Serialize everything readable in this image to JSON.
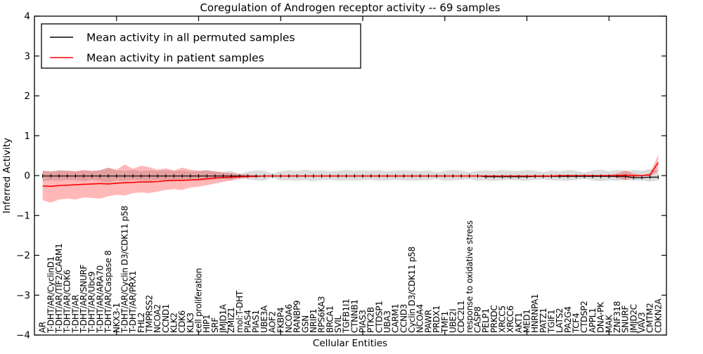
{
  "figure": {
    "title": "Coregulation of Androgen receptor activity -- 69 samples",
    "xlabel": "Cellular Entities",
    "ylabel": "Inferred Activity",
    "legend": {
      "entries": [
        {
          "label": "Mean activity in all permuted samples",
          "color": "#000000"
        },
        {
          "label": "Mean activity in patient samples",
          "color": "#ff0000"
        }
      ],
      "position": "upper left"
    },
    "colors": {
      "permuted_line": "#000000",
      "permuted_band": "#bfbfbf",
      "patient_line": "#ff0000",
      "patient_band": "#ff0000",
      "spine": "#000000"
    }
  },
  "chart_data": {
    "type": "line",
    "title": "Coregulation of Androgen receptor activity -- 69 samples",
    "xlabel": "Cellular Entities",
    "ylabel": "Inferred Activity",
    "xlim": [
      0,
      77
    ],
    "ylim": [
      -4,
      4
    ],
    "yticks": [
      4,
      3,
      2,
      1,
      0,
      -1,
      -2,
      -3,
      -4
    ],
    "yticklabels": [
      "4",
      "3",
      "2",
      "1",
      "0",
      "−1",
      "−2",
      "−3",
      "−4"
    ],
    "xticks": [
      10,
      20,
      30,
      40,
      50,
      60,
      70
    ],
    "grid": false,
    "legend_position": "upper left",
    "categories": [
      "AR",
      "T-DHT/AR/CyclinD1",
      "T-DHT/AR/TIF2/CARM1",
      "T-DHT/AR/CDK6",
      "T-DHT/AR",
      "T-DHT/AR/SNURF",
      "T-DHT/AR/Ubc9",
      "T-DHT/AR/ARA70",
      "T-DHT/AR/Caspase 8",
      "NKX3-1",
      "T-DHT/AR/Cyclin D3/CDK11 p58",
      "T-DHT/AR/PRX1",
      "FHL2",
      "TMPRSS2",
      "NCOA2",
      "CCND1",
      "KLK2",
      "CDK6",
      "KLK3",
      "cell proliferation",
      "HIP1",
      "SRF",
      "JMJD1A",
      "ZMIZ1",
      "mol:T-DHT",
      "PIAS4",
      "PIAS1",
      "UBE3A",
      "AOF2",
      "FKBP4",
      "NCOA6",
      "RANBP9",
      "GSN",
      "NRIP1",
      "RPS6KA3",
      "BRCA1",
      "SVIL",
      "TGFB1I1",
      "CTNNB1",
      "PIAS3",
      "PTK2B",
      "CTDSP1",
      "UBA3",
      "CARM1",
      "CCND3",
      "Cyclin D3/CDK11 p58",
      "NCOA4",
      "PAWR",
      "PRDX1",
      "TMF1",
      "UBE2I",
      "CDC2L1",
      "response to oxidative stress",
      "CASP8",
      "PELP1",
      "PRKDC",
      "XRCC5",
      "XRCC6",
      "AKT1",
      "MED1",
      "HNRNPA1",
      "PATZ1",
      "TGIF1",
      "LATS2",
      "PA2G4",
      "TCF4",
      "CTDSP2",
      "APPL1",
      "DNA-PK",
      "MAK",
      "ZNF318",
      "SNURF",
      "JMJD2C",
      "VAV3",
      "CMTM2",
      "CDKN2A"
    ],
    "series": [
      {
        "name": "Mean activity in all permuted samples",
        "role": "permuted_mean",
        "color": "#000000",
        "marker": "+",
        "values": [
          -0.01,
          -0.01,
          -0.01,
          -0.01,
          -0.01,
          -0.01,
          -0.01,
          -0.01,
          -0.01,
          -0.01,
          -0.01,
          -0.01,
          -0.01,
          -0.01,
          -0.01,
          -0.01,
          -0.01,
          -0.01,
          -0.01,
          -0.01,
          -0.01,
          -0.01,
          -0.01,
          -0.01,
          -0.01,
          -0.01,
          -0.01,
          -0.01,
          -0.01,
          -0.01,
          -0.01,
          -0.01,
          -0.01,
          -0.01,
          -0.01,
          -0.01,
          -0.01,
          -0.01,
          -0.01,
          -0.01,
          -0.01,
          -0.01,
          -0.01,
          -0.01,
          -0.01,
          -0.01,
          -0.01,
          -0.01,
          -0.01,
          -0.01,
          -0.01,
          -0.01,
          -0.01,
          -0.01,
          -0.03,
          -0.03,
          -0.03,
          -0.03,
          -0.03,
          -0.03,
          -0.02,
          -0.02,
          -0.02,
          -0.02,
          -0.02,
          -0.02,
          -0.02,
          -0.02,
          -0.02,
          -0.02,
          -0.02,
          -0.02,
          -0.05,
          -0.05,
          -0.04,
          -0.04
        ]
      },
      {
        "name": "Permuted band upper (mean + std)",
        "role": "permuted_upper",
        "color": "#bfbfbf",
        "values": [
          0.13,
          0.11,
          0.14,
          0.12,
          0.1,
          0.13,
          0.11,
          0.14,
          0.19,
          0.13,
          0.12,
          0.14,
          0.11,
          0.13,
          0.12,
          0.14,
          0.11,
          0.13,
          0.1,
          0.12,
          0.14,
          0.11,
          0.09,
          0.12,
          0.04,
          0.1,
          0.13,
          0.12,
          0.05,
          0.11,
          0.13,
          0.12,
          0.14,
          0.12,
          0.13,
          0.11,
          0.12,
          0.14,
          0.12,
          0.13,
          0.12,
          0.13,
          0.11,
          0.12,
          0.13,
          0.12,
          0.11,
          0.13,
          0.09,
          0.12,
          0.14,
          0.12,
          0.09,
          0.12,
          0.13,
          0.12,
          0.14,
          0.12,
          0.11,
          0.14,
          0.12,
          0.09,
          0.13,
          0.11,
          0.14,
          0.12,
          0.08,
          0.13,
          0.15,
          0.11,
          0.14,
          0.12,
          0.14,
          0.12,
          0.16,
          0.13
        ]
      },
      {
        "name": "Permuted band lower (mean - std)",
        "role": "permuted_lower",
        "color": "#bfbfbf",
        "values": [
          -0.14,
          -0.12,
          -0.13,
          -0.11,
          -0.12,
          -0.14,
          -0.11,
          -0.13,
          -0.18,
          -0.12,
          -0.13,
          -0.11,
          -0.12,
          -0.14,
          -0.11,
          -0.13,
          -0.12,
          -0.14,
          -0.1,
          -0.13,
          -0.12,
          -0.1,
          -0.08,
          -0.11,
          -0.04,
          -0.1,
          -0.12,
          -0.13,
          -0.05,
          -0.12,
          -0.12,
          -0.13,
          -0.12,
          -0.14,
          -0.12,
          -0.11,
          -0.13,
          -0.12,
          -0.13,
          -0.12,
          -0.11,
          -0.13,
          -0.12,
          -0.11,
          -0.12,
          -0.13,
          -0.12,
          -0.12,
          -0.09,
          -0.13,
          -0.12,
          -0.11,
          -0.09,
          -0.13,
          -0.12,
          -0.13,
          -0.12,
          -0.11,
          -0.12,
          -0.13,
          -0.11,
          -0.09,
          -0.12,
          -0.12,
          -0.13,
          -0.11,
          -0.08,
          -0.12,
          -0.14,
          -0.12,
          -0.13,
          -0.11,
          -0.13,
          -0.12,
          -0.15,
          -0.12
        ]
      },
      {
        "name": "Mean activity in patient samples",
        "role": "patient_mean",
        "color": "#ff0000",
        "values": [
          -0.26,
          -0.27,
          -0.25,
          -0.24,
          -0.23,
          -0.22,
          -0.21,
          -0.2,
          -0.21,
          -0.19,
          -0.18,
          -0.17,
          -0.16,
          -0.16,
          -0.15,
          -0.13,
          -0.12,
          -0.12,
          -0.11,
          -0.1,
          -0.08,
          -0.06,
          -0.05,
          -0.04,
          -0.03,
          -0.02,
          -0.02,
          -0.01,
          -0.01,
          -0.01,
          -0.01,
          -0.01,
          -0.01,
          -0.01,
          -0.01,
          -0.01,
          -0.01,
          -0.01,
          -0.01,
          -0.01,
          -0.01,
          -0.01,
          -0.01,
          -0.01,
          -0.01,
          -0.01,
          -0.01,
          -0.01,
          -0.01,
          -0.01,
          -0.01,
          -0.01,
          -0.01,
          -0.01,
          -0.01,
          -0.01,
          -0.01,
          -0.01,
          -0.01,
          -0.01,
          -0.01,
          -0.01,
          -0.01,
          0.0,
          0.0,
          0.0,
          0.0,
          0.0,
          0.0,
          0.0,
          0.0,
          0.01,
          0.0,
          0.0,
          0.02,
          0.33
        ]
      },
      {
        "name": "Patient band upper (mean + std)",
        "role": "patient_upper",
        "color": "#ff0000",
        "values": [
          0.12,
          0.1,
          0.12,
          0.13,
          0.11,
          0.14,
          0.12,
          0.13,
          0.2,
          0.15,
          0.28,
          0.17,
          0.25,
          0.21,
          0.15,
          0.18,
          0.13,
          0.2,
          0.15,
          0.12,
          0.13,
          0.1,
          0.08,
          0.06,
          0.04,
          0.02,
          0.01,
          0.0,
          0.0,
          0.0,
          0.0,
          0.0,
          0.0,
          0.0,
          0.0,
          0.0,
          0.0,
          0.0,
          0.0,
          0.0,
          0.0,
          0.0,
          0.0,
          0.0,
          0.0,
          0.0,
          0.0,
          0.0,
          0.0,
          0.0,
          0.0,
          0.0,
          0.0,
          0.0,
          0.0,
          0.0,
          0.0,
          0.0,
          0.0,
          0.0,
          0.0,
          0.0,
          0.0,
          0.01,
          0.01,
          0.01,
          0.01,
          0.01,
          0.01,
          0.02,
          0.05,
          0.13,
          0.05,
          0.01,
          0.06,
          0.52
        ]
      },
      {
        "name": "Patient band lower (mean - std)",
        "role": "patient_lower",
        "color": "#ff0000",
        "values": [
          -0.62,
          -0.68,
          -0.6,
          -0.58,
          -0.6,
          -0.55,
          -0.56,
          -0.58,
          -0.52,
          -0.48,
          -0.5,
          -0.44,
          -0.42,
          -0.44,
          -0.4,
          -0.36,
          -0.34,
          -0.36,
          -0.3,
          -0.28,
          -0.24,
          -0.2,
          -0.16,
          -0.12,
          -0.09,
          -0.05,
          -0.04,
          -0.02,
          -0.02,
          -0.02,
          -0.02,
          -0.02,
          -0.02,
          -0.02,
          -0.02,
          -0.02,
          -0.02,
          -0.02,
          -0.02,
          -0.02,
          -0.02,
          -0.02,
          -0.02,
          -0.02,
          -0.02,
          -0.02,
          -0.02,
          -0.02,
          -0.02,
          -0.02,
          -0.02,
          -0.02,
          -0.02,
          -0.02,
          -0.02,
          -0.02,
          -0.02,
          -0.02,
          -0.02,
          -0.02,
          -0.02,
          -0.02,
          -0.02,
          -0.01,
          -0.01,
          -0.01,
          -0.01,
          -0.01,
          -0.01,
          -0.02,
          -0.05,
          -0.12,
          -0.05,
          -0.01,
          -0.02,
          0.12
        ]
      }
    ]
  }
}
